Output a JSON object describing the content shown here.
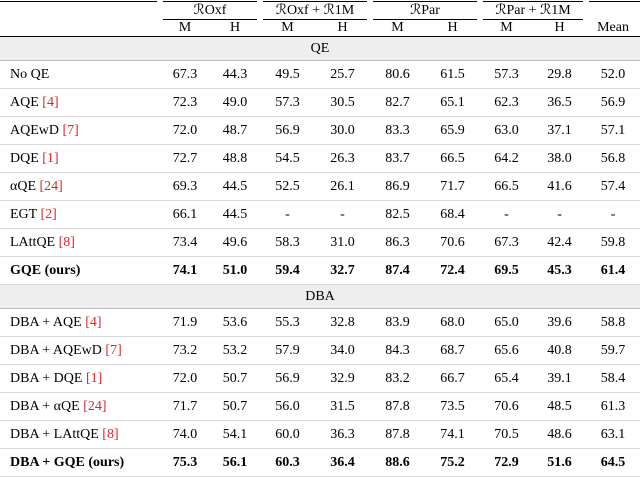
{
  "header": {
    "groups": [
      "ℛOxf",
      "ℛOxf + ℛ1M",
      "ℛPar",
      "ℛPar + ℛ1M"
    ],
    "columns": [
      "M",
      "H",
      "M",
      "H",
      "M",
      "H",
      "M",
      "H",
      "Mean"
    ]
  },
  "sections": [
    {
      "title": "QE",
      "rows": [
        {
          "method": "No QE",
          "values": [
            "67.3",
            "44.3",
            "49.5",
            "25.7",
            "80.6",
            "61.5",
            "57.3",
            "29.8",
            "52.0"
          ]
        },
        {
          "method": "AQE",
          "ref": "[4]",
          "values": [
            "72.3",
            "49.0",
            "57.3",
            "30.5",
            "82.7",
            "65.1",
            "62.3",
            "36.5",
            "56.9"
          ]
        },
        {
          "method": "AQEwD",
          "ref": "[7]",
          "values": [
            "72.0",
            "48.7",
            "56.9",
            "30.0",
            "83.3",
            "65.9",
            "63.0",
            "37.1",
            "57.1"
          ]
        },
        {
          "method": "DQE",
          "ref": "[1]",
          "values": [
            "72.7",
            "48.8",
            "54.5",
            "26.3",
            "83.7",
            "66.5",
            "64.2",
            "38.0",
            "56.8"
          ]
        },
        {
          "method": "αQE",
          "ref": "[24]",
          "values": [
            "69.3",
            "44.5",
            "52.5",
            "26.1",
            "86.9",
            "71.7",
            "66.5",
            "41.6",
            "57.4"
          ]
        },
        {
          "method": "EGT",
          "ref": "[2]",
          "values": [
            "66.1",
            "44.5",
            "-",
            "-",
            "82.5",
            "68.4",
            "-",
            "-",
            "-"
          ]
        },
        {
          "method": "LAttQE",
          "ref": "[8]",
          "values": [
            "73.4",
            "49.6",
            "58.3",
            "31.0",
            "86.3",
            "70.6",
            "67.3",
            "42.4",
            "59.8"
          ]
        },
        {
          "method": "GQE (ours)",
          "bold": true,
          "values": [
            "74.1",
            "51.0",
            "59.4",
            "32.7",
            "87.4",
            "72.4",
            "69.5",
            "45.3",
            "61.4"
          ]
        }
      ]
    },
    {
      "title": "DBA",
      "rows": [
        {
          "method": "DBA + AQE",
          "ref": "[4]",
          "values": [
            "71.9",
            "53.6",
            "55.3",
            "32.8",
            "83.9",
            "68.0",
            "65.0",
            "39.6",
            "58.8"
          ]
        },
        {
          "method": "DBA + AQEwD",
          "ref": "[7]",
          "values": [
            "73.2",
            "53.2",
            "57.9",
            "34.0",
            "84.3",
            "68.7",
            "65.6",
            "40.8",
            "59.7"
          ]
        },
        {
          "method": "DBA + DQE",
          "ref": "[1]",
          "values": [
            "72.0",
            "50.7",
            "56.9",
            "32.9",
            "83.2",
            "66.7",
            "65.4",
            "39.1",
            "58.4"
          ]
        },
        {
          "method": "DBA + αQE",
          "ref": "[24]",
          "values": [
            "71.7",
            "50.7",
            "56.0",
            "31.5",
            "87.8",
            "73.5",
            "70.6",
            "48.5",
            "61.3"
          ]
        },
        {
          "method": "DBA + LAttQE",
          "ref": "[8]",
          "values": [
            "74.0",
            "54.1",
            "60.0",
            "36.3",
            "87.8",
            "74.1",
            "70.5",
            "48.6",
            "63.1"
          ]
        },
        {
          "method": "DBA + GQE (ours)",
          "bold": true,
          "values": [
            "75.3",
            "56.1",
            "60.3",
            "36.4",
            "88.6",
            "75.2",
            "72.9",
            "51.6",
            "64.5"
          ]
        }
      ]
    }
  ]
}
